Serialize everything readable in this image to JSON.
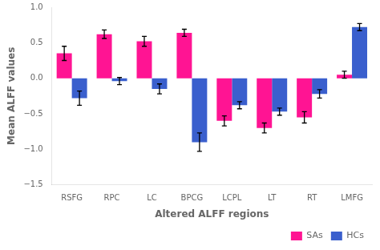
{
  "chart_data": {
    "type": "bar",
    "categories": [
      "RSFG",
      "RPC",
      "LC",
      "BPCG",
      "LCPL",
      "LT",
      "RT",
      "LMFG"
    ],
    "series": [
      {
        "name": "SAs",
        "color": "#FF1493",
        "values": [
          0.35,
          0.62,
          0.52,
          0.64,
          -0.6,
          -0.7,
          -0.55,
          0.05
        ],
        "errors": [
          0.1,
          0.06,
          0.07,
          0.05,
          0.07,
          0.07,
          0.08,
          0.05
        ]
      },
      {
        "name": "HCs",
        "color": "#3A5FCD",
        "values": [
          -0.28,
          -0.04,
          -0.15,
          -0.9,
          -0.38,
          -0.47,
          -0.22,
          0.72
        ],
        "errors": [
          0.1,
          0.05,
          0.07,
          0.13,
          0.05,
          0.05,
          0.06,
          0.05
        ]
      }
    ],
    "xlabel": "Altered ALFF regions",
    "ylabel": "Mean ALFF values",
    "ylim": [
      -1.5,
      1.0
    ],
    "yticks": [
      {
        "value": -1.5,
        "label": "−1.5"
      },
      {
        "value": -1.0,
        "label": "−1.0"
      },
      {
        "value": -0.5,
        "label": "−0.5"
      },
      {
        "value": 0.0,
        "label": "0.0"
      },
      {
        "value": 0.5,
        "label": "0.5"
      },
      {
        "value": 1.0,
        "label": "1.0"
      }
    ],
    "grid": false,
    "legend": "lower right"
  }
}
